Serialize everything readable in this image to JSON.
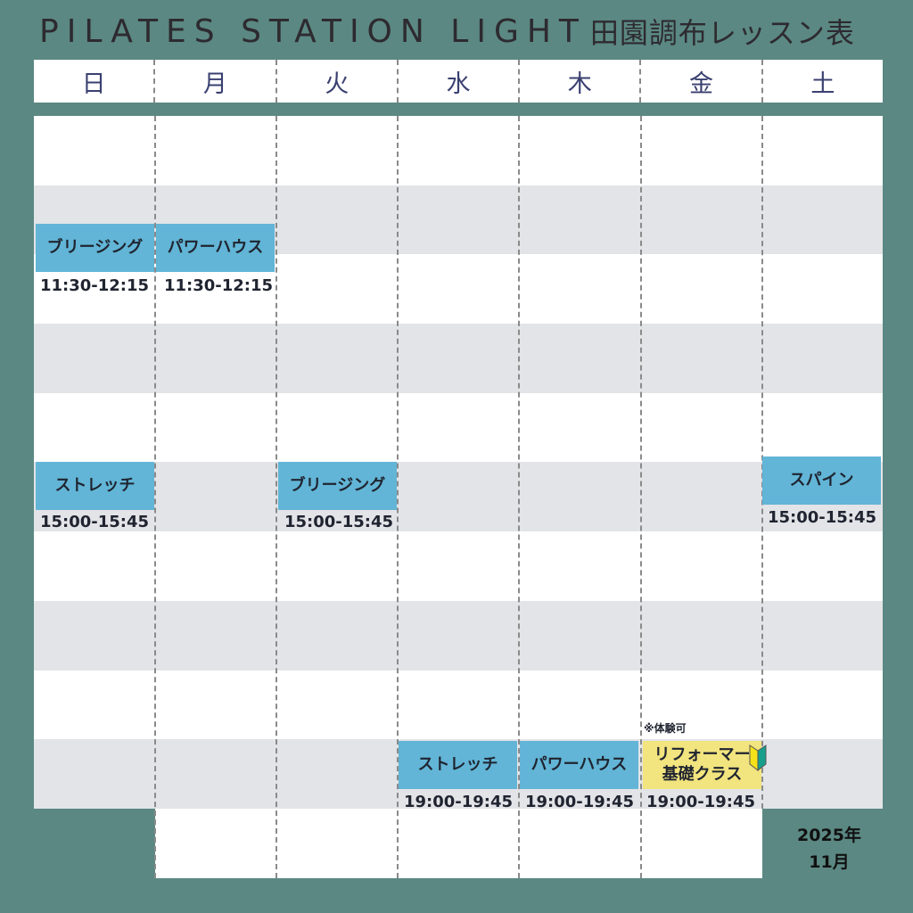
{
  "header": {
    "title_en": "PILATES STATION LIGHT",
    "title_ja": "田園調布レッスン表"
  },
  "days": [
    "日",
    "月",
    "火",
    "水",
    "木",
    "金",
    "土"
  ],
  "lessons": [
    {
      "day": "日",
      "name": "ブリージング",
      "time": "11:30-12:15"
    },
    {
      "day": "月",
      "name": "パワーハウス",
      "time": "11:30-12:15"
    },
    {
      "day": "日",
      "name": "ストレッチ",
      "time": "15:00-15:45"
    },
    {
      "day": "火",
      "name": "ブリージング",
      "time": "15:00-15:45"
    },
    {
      "day": "土",
      "name": "スパイン",
      "time": "15:00-15:45"
    },
    {
      "day": "水",
      "name": "ストレッチ",
      "time": "19:00-19:45"
    },
    {
      "day": "木",
      "name": "パワーハウス",
      "time": "19:00-19:45"
    },
    {
      "day": "金",
      "name": "リフォーマー基礎クラス",
      "name_line1": "リフォーマー",
      "name_line2": "基礎クラス",
      "time": "19:00-19:45",
      "note": "※体験可",
      "icon": "beginner-mark-icon",
      "color": "#f2e47e"
    }
  ],
  "colors": {
    "background": "#5b8882",
    "lesson": "#62b5d6",
    "beginner": "#f2e47e"
  },
  "footer": {
    "year": "2025年",
    "month": "11月"
  }
}
